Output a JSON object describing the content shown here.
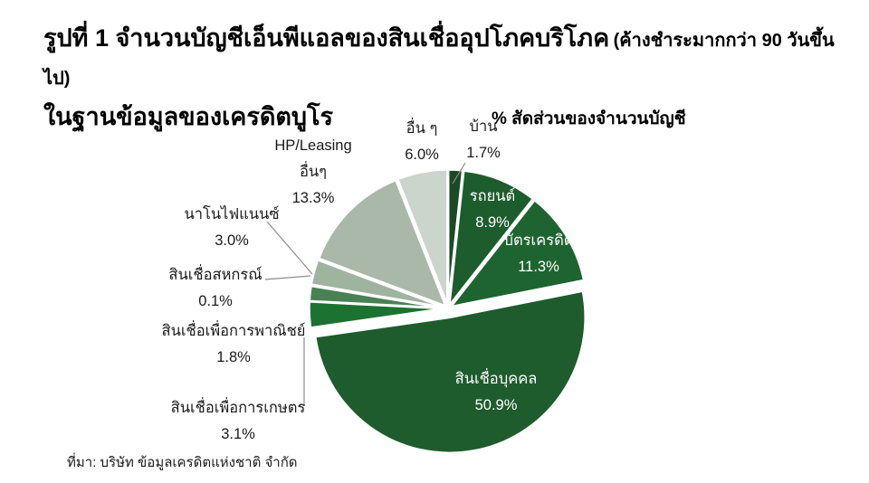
{
  "title": {
    "line1_main": "รูปที่ 1 จำนวนบัญชีเอ็นพีแอลของสินเชื่ออุปโภคบริโภค",
    "line1_paren": "(ค้างชำระมากกว่า 90 วันขึ้นไป)",
    "line2": "ในฐานข้อมูลของเครดิตบูโร"
  },
  "chart_header": "% สัดส่วนของจำนวนบัญชี",
  "source": "ที่มา: บริษัท ข้อมูลเครดิตแห่งชาติ จำกัด",
  "colors": {
    "background": "#ffffff",
    "leader_line": "#8c8c8c",
    "slice_separator": "#ffffff",
    "text": "#1a1a1a",
    "inside_label_text": "#ffffff"
  },
  "chart_data": {
    "type": "pie",
    "title": "% สัดส่วนของจำนวนบัญชี",
    "start_angle_deg": 0,
    "direction": "clockwise",
    "legend_position": "none",
    "slices": [
      {
        "label": "บ้าน",
        "value": 1.7,
        "value_text": "1.7%",
        "color": "#1A4A24",
        "label_placement": "outside"
      },
      {
        "label": "รถยนต์",
        "value": 8.9,
        "value_text": "8.9%",
        "color": "#1D5C2C",
        "label_placement": "inside"
      },
      {
        "label": "บัตรเครดิต",
        "value": 11.3,
        "value_text": "11.3%",
        "color": "#1E6430",
        "label_placement": "inside"
      },
      {
        "label": "สินเชื่อบุคคล",
        "value": 50.9,
        "value_text": "50.9%",
        "color": "#1E5C2E",
        "label_placement": "inside",
        "exploded": true
      },
      {
        "label": "สินเชื่อเพื่อการเกษตร",
        "value": 3.1,
        "value_text": "3.1%",
        "color": "#1C7231",
        "label_placement": "outside"
      },
      {
        "label": "สินเชื่อเพื่อการพาณิชย์",
        "value": 1.8,
        "value_text": "1.8%",
        "color": "#4A8154",
        "label_placement": "outside"
      },
      {
        "label": "สินเชื่อสหกรณ์",
        "value": 0.1,
        "value_text": "0.1%",
        "color": "#6E9B77",
        "label_placement": "outside"
      },
      {
        "label": "นาโนไฟแนนซ์",
        "value": 3.0,
        "value_text": "3.0%",
        "color": "#9FB49F",
        "label_placement": "outside"
      },
      {
        "label": "HP/Leasing อื่นๆ",
        "label_lines": [
          "HP/Leasing",
          "อื่นๆ"
        ],
        "value": 13.3,
        "value_text": "13.3%",
        "color": "#A9B8A8",
        "label_placement": "outside"
      },
      {
        "label": "อื่น ๆ",
        "value": 6.0,
        "value_text": "6.0%",
        "color": "#CCD5CB",
        "label_placement": "outside"
      }
    ]
  }
}
